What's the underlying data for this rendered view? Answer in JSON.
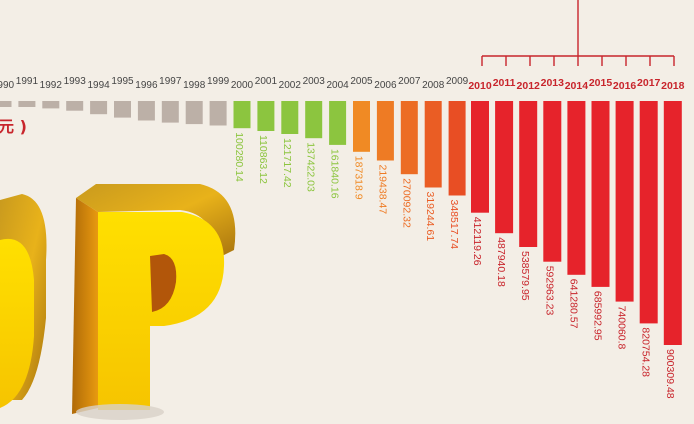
{
  "chart_data": {
    "type": "bar",
    "unit_label": "元 )",
    "categories": [
      "1990",
      "1991",
      "1992",
      "1993",
      "1994",
      "1995",
      "1996",
      "1997",
      "1998",
      "1999",
      "2000",
      "2001",
      "2002",
      "2003",
      "2004",
      "2005",
      "2006",
      "2007",
      "2008",
      "2009",
      "2010",
      "2011",
      "2012",
      "2013",
      "2014",
      "2015",
      "2016",
      "2017",
      "2018"
    ],
    "value_labels": [
      "",
      "",
      "",
      "",
      "",
      "",
      "",
      "",
      "",
      "",
      "100280.14",
      "110863.12",
      "121717.42",
      "137422.03",
      "161840.16",
      "187318.9",
      "219438.47",
      "270092.32",
      "319244.61",
      "348517.74",
      "412119.26",
      "487940.18",
      "538579.95",
      "592963.23",
      "641280.57",
      "685992.95",
      "740060.8",
      "820754.28",
      "900309.48"
    ],
    "values": [
      18872.9,
      22005.6,
      27194.5,
      35673.2,
      48637.5,
      61339.9,
      71813.6,
      79715,
      85195.5,
      90564.4,
      100280.14,
      110863.12,
      121717.42,
      137422.03,
      161840.16,
      187318.9,
      219438.47,
      270092.32,
      319244.61,
      348517.74,
      412119.26,
      487940.18,
      538579.95,
      592963.23,
      641280.57,
      685992.95,
      740060.8,
      820754.28,
      900309.48
    ],
    "colors": {
      "gray": "#bcb0a7",
      "green": "#8cc53f",
      "orange": "#f08a24",
      "red": "#e6232b",
      "label_red": "#c8252c",
      "background": "#f3eee6"
    }
  }
}
